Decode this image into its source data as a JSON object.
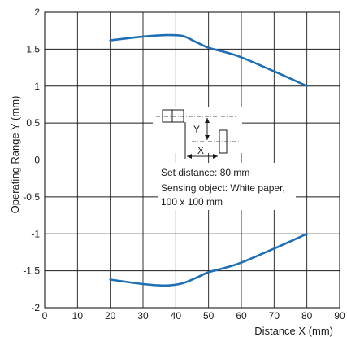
{
  "chart_data": {
    "type": "line",
    "xlabel": "Distance X (mm)",
    "ylabel": "Operating Range Y (mm)",
    "xlim": [
      0,
      90
    ],
    "ylim": [
      -2,
      2
    ],
    "x_ticks": [
      0,
      10,
      20,
      30,
      40,
      50,
      60,
      70,
      80,
      90
    ],
    "y_ticks": [
      {
        "value": 2,
        "label": "2"
      },
      {
        "value": 1.5,
        "label": "1.5"
      },
      {
        "value": 1,
        "label": "1"
      },
      {
        "value": 0.5,
        "label": "0.5"
      },
      {
        "value": 0,
        "label": "0"
      },
      {
        "value": -0.5,
        "label": "-0.5"
      },
      {
        "value": -1,
        "label": "-1"
      },
      {
        "value": -1.5,
        "label": "-1.5"
      },
      {
        "value": -2,
        "label": "-2"
      }
    ],
    "grid": true,
    "line_color": "#1f6fb5",
    "series": [
      {
        "points": [
          [
            20,
            1.62
          ],
          [
            30,
            1.67
          ],
          [
            37,
            1.69
          ],
          [
            42,
            1.68
          ],
          [
            46,
            1.6
          ],
          [
            50,
            1.52
          ],
          [
            55,
            1.46
          ],
          [
            60,
            1.39
          ],
          [
            70,
            1.2
          ],
          [
            80,
            1.0
          ]
        ]
      },
      {
        "points": [
          [
            20,
            -1.62
          ],
          [
            30,
            -1.68
          ],
          [
            37,
            -1.7
          ],
          [
            42,
            -1.67
          ],
          [
            46,
            -1.6
          ],
          [
            50,
            -1.52
          ],
          [
            55,
            -1.46
          ],
          [
            60,
            -1.39
          ],
          [
            70,
            -1.2
          ],
          [
            80,
            -1.0
          ]
        ]
      }
    ],
    "annotations": {
      "diagram_y_label": "Y",
      "diagram_x_label": "X",
      "note_lines": [
        "Set distance: 80 mm",
        "Sensing object: White paper,",
        "100 x 100 mm"
      ]
    }
  }
}
